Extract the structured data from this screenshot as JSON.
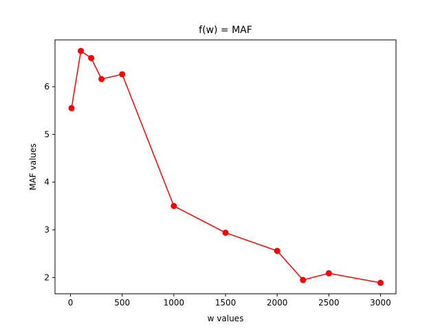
{
  "chart_data": {
    "type": "line",
    "title": "f(w) = MAF",
    "xlabel": "w values",
    "ylabel": "MAF values",
    "xlim": [
      -150,
      3150
    ],
    "ylim": [
      1.66,
      6.98
    ],
    "xticks": [
      0,
      500,
      1000,
      1500,
      2000,
      2500,
      3000
    ],
    "xtick_labels": [
      "0",
      "500",
      "1000",
      "1500",
      "2000",
      "2500",
      "3000"
    ],
    "yticks": [
      2,
      3,
      4,
      5,
      6
    ],
    "ytick_labels": [
      "2",
      "3",
      "4",
      "5",
      "6"
    ],
    "grid": false,
    "series": [
      {
        "color": "#ff0000",
        "marker": "circle",
        "x": [
          10,
          100,
          200,
          300,
          500,
          1000,
          1500,
          2000,
          2250,
          2500,
          3000
        ],
        "y": [
          5.55,
          6.75,
          6.6,
          6.16,
          6.26,
          3.5,
          2.94,
          2.56,
          1.95,
          2.09,
          1.89
        ]
      }
    ]
  }
}
